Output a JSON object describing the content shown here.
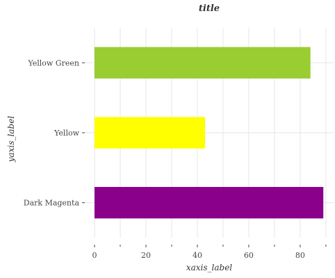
{
  "chart_data": {
    "type": "bar",
    "orientation": "horizontal",
    "title": "title",
    "xlabel": "xaxis_label",
    "ylabel": "yaxis_label",
    "categories": [
      "Dark Magenta",
      "Yellow",
      "Yellow Green"
    ],
    "values": [
      89,
      43,
      84
    ],
    "colors": [
      "#8b008b",
      "#ffff00",
      "#9acd32"
    ],
    "xlim": [
      0,
      93
    ],
    "xticks": [
      0,
      20,
      40,
      60,
      80
    ],
    "grid": true,
    "legend": "none"
  }
}
